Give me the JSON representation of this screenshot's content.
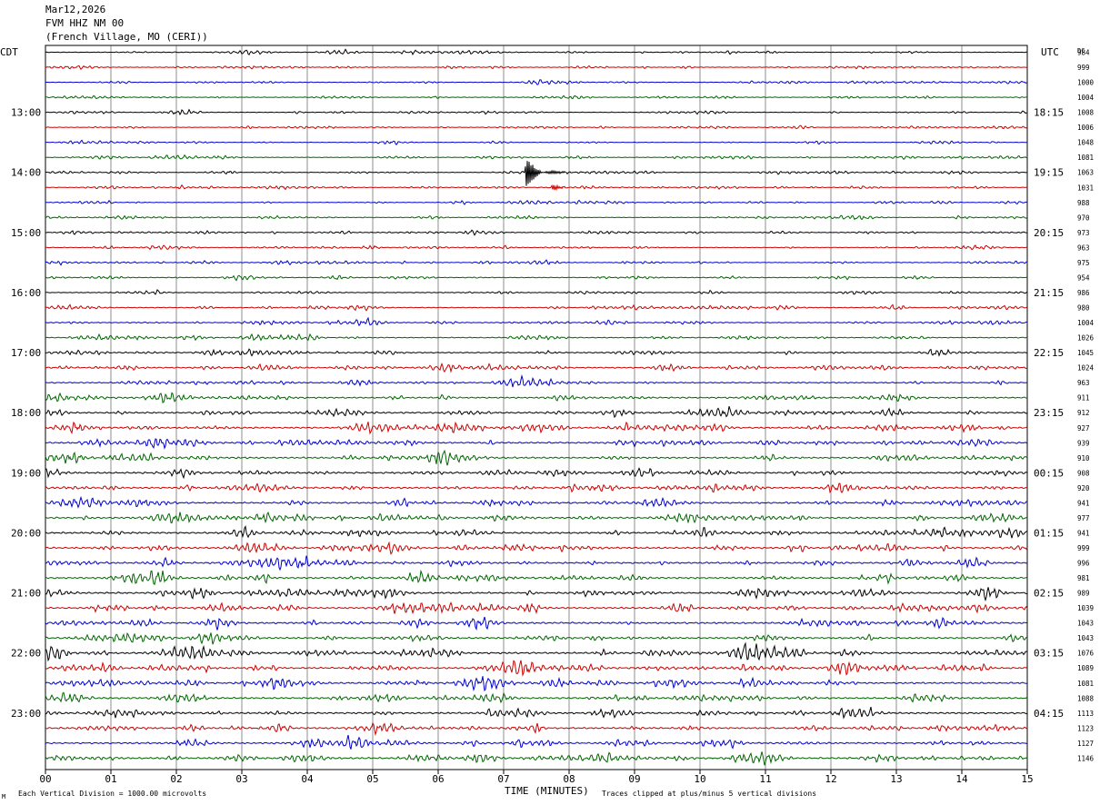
{
  "header": {
    "date": "Mar12,2026",
    "station": "FVM HHZ NM 00",
    "location": "(French Village, MO (CERI))"
  },
  "labels": {
    "left_tz": "CDT",
    "right_tz": "UTC",
    "dc": "DC",
    "xlabel": "TIME (MINUTES)",
    "scale_note": "Each Vertical Division = 1000.00 microvolts",
    "clip_note": "Traces clipped at plus/minus 5 vertical divisions"
  },
  "colors": {
    "trace_cycle": [
      "#000000",
      "#cc0000",
      "#0000cc",
      "#006600"
    ],
    "grid": "#000000",
    "background": "#ffffff"
  },
  "chart_data": {
    "type": "line",
    "title": "FVM HHZ NM 00",
    "xlabel": "TIME (MINUTES)",
    "xlim": [
      0,
      15
    ],
    "x_ticks": [
      "00",
      "01",
      "02",
      "03",
      "04",
      "05",
      "06",
      "07",
      "08",
      "09",
      "10",
      "11",
      "12",
      "13",
      "14",
      "15"
    ],
    "trace_minutes_per_line": 15,
    "traces_per_hour": 4,
    "hour_labels_cdt": [
      "13:00",
      "14:00",
      "15:00",
      "16:00",
      "17:00",
      "18:00",
      "19:00",
      "20:00",
      "21:00",
      "22:00",
      "23:00"
    ],
    "hour_labels_utc": [
      "18:15",
      "19:15",
      "20:15",
      "21:15",
      "22:15",
      "23:15",
      "00:15",
      "01:15",
      "02:15",
      "03:15",
      "04:15"
    ],
    "first_hour_label_trace": 4,
    "dc_offsets": [
      984,
      999,
      1000,
      1004,
      1008,
      1006,
      1048,
      1081,
      1063,
      1031,
      988,
      970,
      973,
      963,
      975,
      954,
      986,
      980,
      1004,
      1026,
      1045,
      1024,
      963,
      911,
      912,
      927,
      939,
      910,
      908,
      920,
      941,
      977,
      941,
      999,
      996,
      981,
      989,
      1039,
      1043,
      1043,
      1076,
      1089,
      1081,
      1088,
      1113,
      1123,
      1127,
      1146
    ],
    "trace_amplitude_levels": [
      0.3,
      0.32,
      0.32,
      0.35,
      0.35,
      0.32,
      0.32,
      0.35,
      0.35,
      0.35,
      0.32,
      0.32,
      0.35,
      0.35,
      0.35,
      0.38,
      0.4,
      0.45,
      0.45,
      0.5,
      0.6,
      0.65,
      0.65,
      0.8,
      0.85,
      0.9,
      0.9,
      0.95,
      0.95,
      0.95,
      0.95,
      0.95,
      0.95,
      0.95,
      0.95,
      0.95,
      0.95,
      0.95,
      0.95,
      0.95,
      0.95,
      0.9,
      0.9,
      0.9,
      0.9,
      0.9,
      0.9,
      0.9
    ],
    "events": [
      {
        "trace": 8,
        "minute": 7.35,
        "amplitude_divisions": 2.5,
        "duration_minutes": 0.7
      },
      {
        "trace": 9,
        "minute": 7.75,
        "amplitude_divisions": 0.6,
        "duration_minutes": 0.3
      }
    ],
    "vertical_division_microvolts": 1000.0,
    "clip_divisions": 5
  }
}
